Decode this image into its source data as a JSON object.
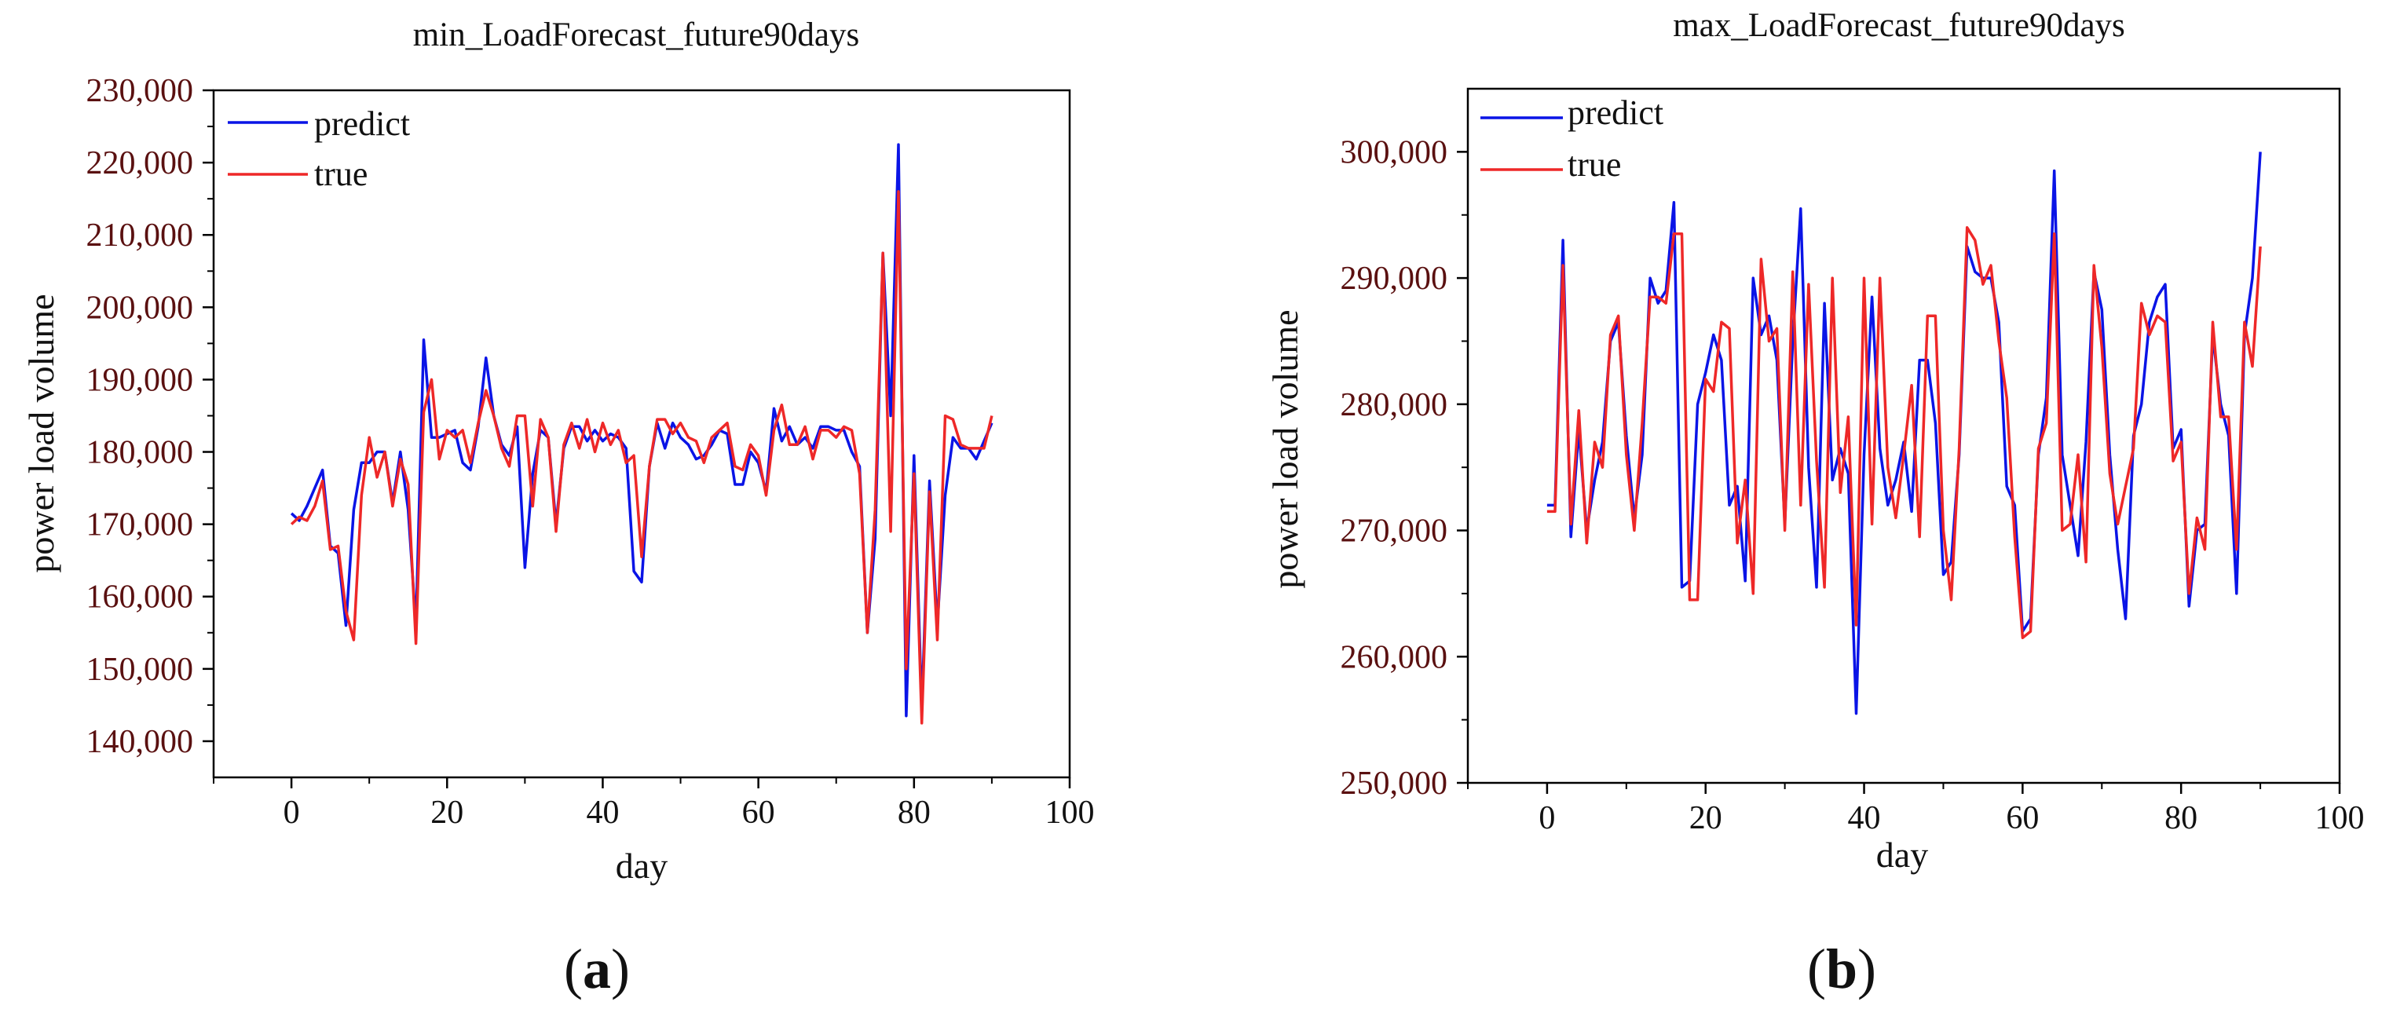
{
  "chart_data": [
    {
      "type": "line",
      "panel": "a",
      "title": "min_LoadForecast_future90days",
      "xlabel": "day",
      "ylabel": "power load volume",
      "xlim": [
        -10,
        100
      ],
      "ylim": [
        135000,
        230000
      ],
      "xticks": [
        0,
        20,
        40,
        60,
        80,
        100
      ],
      "xtick_labels": [
        "0",
        "20",
        "40",
        "60",
        "80",
        "100"
      ],
      "yticks": [
        140000,
        150000,
        160000,
        170000,
        180000,
        190000,
        200000,
        210000,
        220000,
        230000
      ],
      "ytick_labels": [
        "140,000",
        "150,000",
        "160,000",
        "170,000",
        "180,000",
        "190,000",
        "200,000",
        "210,000",
        "220,000",
        "230,000"
      ],
      "legend_position": "top-left",
      "grid": false,
      "x": [
        0,
        1,
        2,
        3,
        4,
        5,
        6,
        7,
        8,
        9,
        10,
        11,
        12,
        13,
        14,
        15,
        16,
        17,
        18,
        19,
        20,
        21,
        22,
        23,
        24,
        25,
        26,
        27,
        28,
        29,
        30,
        31,
        32,
        33,
        34,
        35,
        36,
        37,
        38,
        39,
        40,
        41,
        42,
        43,
        44,
        45,
        46,
        47,
        48,
        49,
        50,
        51,
        52,
        53,
        54,
        55,
        56,
        57,
        58,
        59,
        60,
        61,
        62,
        63,
        64,
        65,
        66,
        67,
        68,
        69,
        70,
        71,
        72,
        73,
        74,
        75,
        76,
        77,
        78,
        79,
        80,
        81,
        82,
        83,
        84,
        85,
        86,
        87,
        88,
        89,
        90
      ],
      "series": [
        {
          "name": "predict",
          "color": "#0a14e6",
          "values": [
            171500,
            170500,
            172500,
            175000,
            177500,
            167000,
            166000,
            156000,
            172000,
            178500,
            178500,
            180000,
            180000,
            173000,
            180000,
            172000,
            156000,
            195500,
            182000,
            182000,
            182500,
            183000,
            178500,
            177500,
            183500,
            193000,
            185000,
            181000,
            179500,
            183500,
            164000,
            177000,
            183000,
            182000,
            170000,
            180500,
            183500,
            183500,
            181500,
            183000,
            181500,
            182500,
            182000,
            180500,
            163500,
            162000,
            178000,
            184000,
            180500,
            184000,
            182000,
            181000,
            179000,
            179500,
            181000,
            183000,
            182500,
            175500,
            175500,
            180000,
            178500,
            174500,
            186000,
            181500,
            183500,
            181000,
            182000,
            180500,
            183500,
            183500,
            183000,
            183000,
            180000,
            178000,
            155000,
            168000,
            207500,
            185000,
            222500,
            143500,
            179500,
            144500,
            176000,
            156000,
            174000,
            182000,
            180500,
            180500,
            179000,
            181500,
            184000
          ]
        },
        {
          "name": "true",
          "color": "#ee2828",
          "values": [
            170000,
            171000,
            170500,
            172500,
            176000,
            166500,
            167000,
            158000,
            154000,
            174000,
            182000,
            176500,
            180000,
            172500,
            179000,
            175500,
            153500,
            185500,
            190000,
            179000,
            183000,
            182000,
            183000,
            178500,
            184000,
            188500,
            185000,
            180500,
            178000,
            185000,
            185000,
            172500,
            184500,
            182000,
            169000,
            181000,
            184000,
            180500,
            184500,
            180000,
            184000,
            181000,
            183000,
            178500,
            179500,
            165500,
            178000,
            184500,
            184500,
            182500,
            184000,
            182000,
            181500,
            178500,
            182000,
            183000,
            184000,
            178000,
            177500,
            181000,
            179500,
            174000,
            183000,
            186500,
            181000,
            181000,
            183500,
            179000,
            183000,
            183000,
            182000,
            183500,
            183000,
            177000,
            155000,
            172000,
            207500,
            169000,
            216000,
            150000,
            177000,
            142500,
            174500,
            154000,
            185000,
            184500,
            181000,
            180500,
            180500,
            180500,
            185000
          ]
        }
      ]
    },
    {
      "type": "line",
      "panel": "b",
      "title": "max_LoadForecast_future90days",
      "xlabel": "day",
      "ylabel": "power load volume",
      "xlim": [
        -10,
        100
      ],
      "ylim": [
        250000,
        305000
      ],
      "xticks": [
        0,
        20,
        40,
        60,
        80,
        100
      ],
      "xtick_labels": [
        "0",
        "20",
        "40",
        "60",
        "80",
        "100"
      ],
      "yticks": [
        250000,
        260000,
        270000,
        280000,
        290000,
        300000
      ],
      "ytick_labels": [
        "250,000",
        "260,000",
        "270,000",
        "280,000",
        "290,000",
        "300,000"
      ],
      "legend_position": "top-left",
      "grid": false,
      "x": [
        0,
        1,
        2,
        3,
        4,
        5,
        6,
        7,
        8,
        9,
        10,
        11,
        12,
        13,
        14,
        15,
        16,
        17,
        18,
        19,
        20,
        21,
        22,
        23,
        24,
        25,
        26,
        27,
        28,
        29,
        30,
        31,
        32,
        33,
        34,
        35,
        36,
        37,
        38,
        39,
        40,
        41,
        42,
        43,
        44,
        45,
        46,
        47,
        48,
        49,
        50,
        51,
        52,
        53,
        54,
        55,
        56,
        57,
        58,
        59,
        60,
        61,
        62,
        63,
        64,
        65,
        66,
        67,
        68,
        69,
        70,
        71,
        72,
        73,
        74,
        75,
        76,
        77,
        78,
        79,
        80,
        81,
        82,
        83,
        84,
        85,
        86,
        87,
        88,
        89,
        90
      ],
      "series": [
        {
          "name": "predict",
          "color": "#0a14e6",
          "values": [
            272000,
            272000,
            293000,
            269500,
            278000,
            270000,
            274000,
            277000,
            285000,
            286500,
            277500,
            271000,
            276000,
            290000,
            288000,
            289000,
            296000,
            265500,
            266000,
            280000,
            282500,
            285500,
            283500,
            272000,
            273500,
            266000,
            290000,
            285500,
            287000,
            283500,
            270500,
            285000,
            295500,
            275000,
            265500,
            288000,
            274000,
            276500,
            274500,
            255500,
            276000,
            288500,
            276500,
            272000,
            274000,
            277000,
            271500,
            283500,
            283500,
            278500,
            266500,
            267500,
            276000,
            292500,
            290500,
            290000,
            290000,
            286500,
            273500,
            272000,
            262000,
            263000,
            276000,
            280500,
            298500,
            276000,
            272000,
            268000,
            277000,
            290500,
            287500,
            276000,
            268500,
            263000,
            277500,
            280000,
            286500,
            288500,
            289500,
            276500,
            278000,
            264000,
            270000,
            270500,
            285500,
            280000,
            277500,
            265000,
            285500,
            290000,
            300000
          ]
        },
        {
          "name": "true",
          "color": "#ee2828",
          "values": [
            271500,
            271500,
            291000,
            270500,
            279500,
            269000,
            277000,
            275000,
            285500,
            287000,
            276000,
            270000,
            278500,
            288500,
            288500,
            288000,
            293500,
            293500,
            264500,
            264500,
            282000,
            281000,
            286500,
            286000,
            269000,
            274000,
            265000,
            291500,
            285000,
            286000,
            270000,
            290500,
            272000,
            289500,
            275500,
            265500,
            290000,
            273000,
            279000,
            262500,
            290000,
            270500,
            290000,
            275000,
            271000,
            276000,
            281500,
            269500,
            287000,
            287000,
            270000,
            264500,
            276500,
            294000,
            293000,
            289500,
            291000,
            285000,
            280500,
            269500,
            261500,
            262000,
            276500,
            278500,
            293500,
            270000,
            270500,
            276000,
            267500,
            291000,
            284500,
            274500,
            270500,
            273500,
            276500,
            288000,
            285500,
            287000,
            286500,
            275500,
            277000,
            265000,
            271000,
            268500,
            286500,
            279000,
            279000,
            268500,
            286500,
            283000,
            292500
          ]
        }
      ]
    }
  ],
  "panels": [
    {
      "label_open": "(",
      "label_letter": "a",
      "label_close": ")"
    },
    {
      "label_open": "(",
      "label_letter": "b",
      "label_close": ")"
    }
  ]
}
